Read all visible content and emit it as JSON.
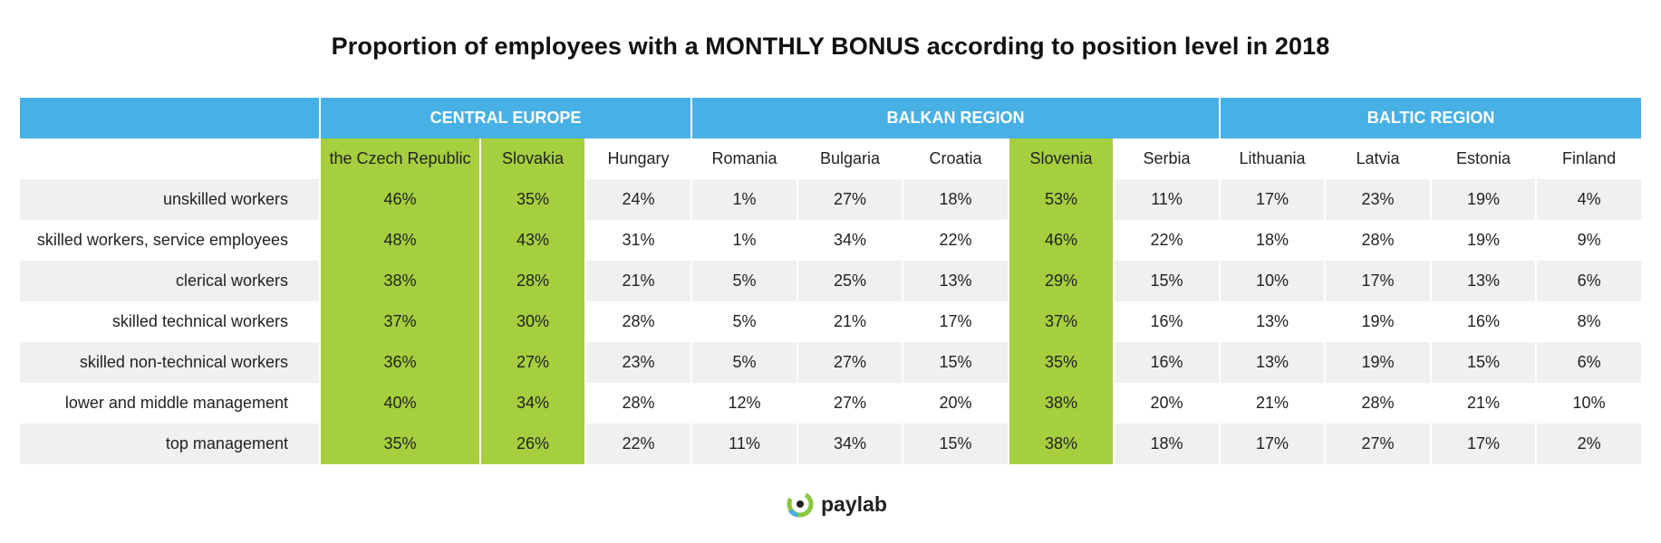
{
  "title": "Proportion of employees with a MONTHLY BONUS  according to position level in 2018",
  "regions": [
    {
      "label": "CENTRAL EUROPE",
      "span": 3
    },
    {
      "label": "BALKAN REGION",
      "span": 5
    },
    {
      "label": "BALTIC REGION",
      "span": 4
    }
  ],
  "colors": {
    "region_header": "#47b0e5",
    "highlight": "#a5cf3e",
    "stripe": "#f0f0f0",
    "logo_green": "#8cc63f",
    "logo_blue": "#47b0e5"
  },
  "brand": {
    "name": "paylab",
    "icon": "paylab-logo-icon"
  },
  "chart_data": {
    "type": "table",
    "title": "Proportion of employees with a MONTHLY BONUS  according to position level in 2018",
    "columns": [
      "the Czech Republic",
      "Slovakia",
      "Hungary",
      "Romania",
      "Bulgaria",
      "Croatia",
      "Slovenia",
      "Serbia",
      "Lithuania",
      "Latvia",
      "Estonia",
      "Finland"
    ],
    "highlighted_columns": [
      "the Czech Republic",
      "Slovakia",
      "Slovenia"
    ],
    "rows": [
      {
        "label": "unskilled workers",
        "values": [
          "46%",
          "35%",
          "24%",
          "1%",
          "27%",
          "18%",
          "53%",
          "11%",
          "17%",
          "23%",
          "19%",
          "4%"
        ]
      },
      {
        "label": "skilled workers, service employees",
        "values": [
          "48%",
          "43%",
          "31%",
          "1%",
          "34%",
          "22%",
          "46%",
          "22%",
          "18%",
          "28%",
          "19%",
          "9%"
        ]
      },
      {
        "label": "clerical workers",
        "values": [
          "38%",
          "28%",
          "21%",
          "5%",
          "25%",
          "13%",
          "29%",
          "15%",
          "10%",
          "17%",
          "13%",
          "6%"
        ]
      },
      {
        "label": "skilled technical workers",
        "values": [
          "37%",
          "30%",
          "28%",
          "5%",
          "21%",
          "17%",
          "37%",
          "16%",
          "13%",
          "19%",
          "16%",
          "8%"
        ]
      },
      {
        "label": "skilled non-technical workers",
        "values": [
          "36%",
          "27%",
          "23%",
          "5%",
          "27%",
          "15%",
          "35%",
          "16%",
          "13%",
          "19%",
          "15%",
          "6%"
        ]
      },
      {
        "label": "lower and middle management",
        "values": [
          "40%",
          "34%",
          "28%",
          "12%",
          "27%",
          "20%",
          "38%",
          "20%",
          "21%",
          "28%",
          "21%",
          "10%"
        ]
      },
      {
        "label": "top management",
        "values": [
          "35%",
          "26%",
          "22%",
          "11%",
          "34%",
          "15%",
          "38%",
          "18%",
          "17%",
          "27%",
          "17%",
          "2%"
        ]
      }
    ]
  }
}
